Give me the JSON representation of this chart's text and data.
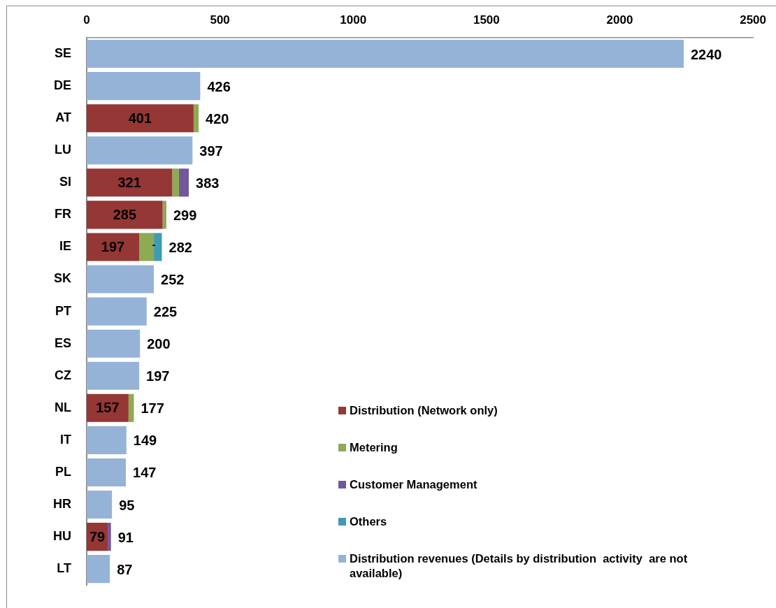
{
  "chart_data": {
    "type": "bar",
    "orientation": "horizontal",
    "stacked": true,
    "categories": [
      "SE",
      "DE",
      "AT",
      "LU",
      "SI",
      "FR",
      "IE",
      "SK",
      "PT",
      "ES",
      "CZ",
      "NL",
      "IT",
      "PL",
      "HR",
      "HU",
      "LT"
    ],
    "series": [
      {
        "name": "Distribution (Network only)",
        "color": "#953735",
        "values": [
          null,
          null,
          401,
          null,
          321,
          285,
          197,
          null,
          null,
          null,
          null,
          157,
          null,
          null,
          null,
          79,
          null
        ],
        "value_labels": [
          null,
          null,
          "401",
          null,
          "321",
          "285",
          "197",
          null,
          null,
          null,
          null,
          "157",
          null,
          null,
          null,
          "79",
          null
        ]
      },
      {
        "name": "Metering",
        "color": "#8eaa52",
        "values": [
          null,
          null,
          19,
          null,
          25,
          14,
          55,
          null,
          null,
          null,
          null,
          20,
          null,
          null,
          null,
          null,
          null
        ]
      },
      {
        "name": "Customer Management",
        "color": "#72579a",
        "values": [
          null,
          null,
          null,
          null,
          37,
          null,
          0,
          null,
          null,
          null,
          null,
          null,
          null,
          null,
          null,
          12,
          null
        ],
        "value_labels": [
          null,
          null,
          null,
          null,
          null,
          null,
          "-",
          null,
          null,
          null,
          null,
          null,
          null,
          null,
          null,
          null,
          null
        ]
      },
      {
        "name": "Others",
        "color": "#3f9bb4",
        "values": [
          null,
          null,
          null,
          null,
          null,
          null,
          30,
          null,
          null,
          null,
          null,
          null,
          null,
          null,
          null,
          null,
          null
        ]
      },
      {
        "name": "Distribution revenues (Details by distribution  activity  are not available)",
        "color": "#95b3d7",
        "values": [
          2240,
          426,
          null,
          397,
          null,
          null,
          null,
          252,
          225,
          200,
          197,
          null,
          149,
          147,
          95,
          null,
          87
        ]
      }
    ],
    "xlim": [
      0,
      2500
    ],
    "xticks": [
      0,
      500,
      1000,
      1500,
      2000,
      2500
    ],
    "totals": [
      "2240",
      "426",
      "420",
      "397",
      "383",
      "299",
      "282",
      "252",
      "225",
      "200",
      "197",
      "177",
      "149",
      "147",
      "95",
      "91",
      "87"
    ],
    "legend": "bottom right"
  }
}
